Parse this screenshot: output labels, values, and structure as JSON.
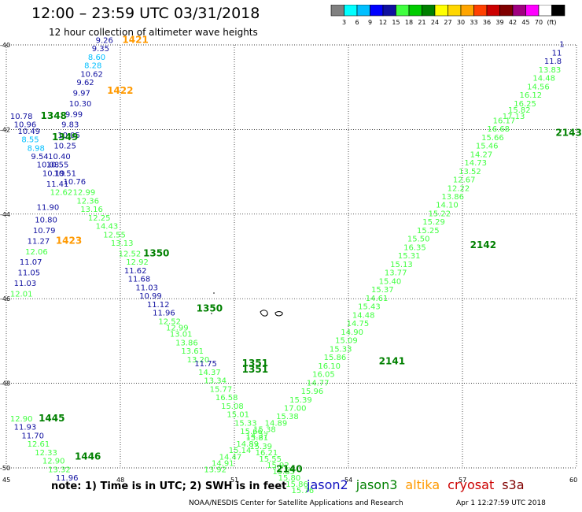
{
  "title": "12:00 – 23:59 UTC 03/31/2018",
  "subtitle": "12 hour collection of altimeter wave heights",
  "legend": {
    "colors": [
      "#808080",
      "#00ffff",
      "#00bfff",
      "#0000ff",
      "#1010a0",
      "#40ff40",
      "#00cc00",
      "#008000",
      "#ffff00",
      "#ffd700",
      "#ffa500",
      "#ff4000",
      "#cc0000",
      "#800000",
      "#a00080",
      "#ff00ff",
      "#ffffff",
      "#000000"
    ],
    "labels": [
      "3",
      "6",
      "9",
      "12",
      "15",
      "18",
      "21",
      "24",
      "27",
      "30",
      "33",
      "36",
      "39",
      "42",
      "45",
      "70",
      "(ft)"
    ]
  },
  "axes": {
    "lat_labels": [
      "-40",
      "-42",
      "-44",
      "-46",
      "-48",
      "-50"
    ],
    "lon_labels": [
      "45",
      "48",
      "51",
      "54",
      "57",
      "60"
    ]
  },
  "note": "note:  1) Time is in UTC;  2) SWH is in feet",
  "satellites": [
    {
      "name": "jason2",
      "color": "#1010c0"
    },
    {
      "name": "jason3",
      "color": "#008000"
    },
    {
      "name": "altika",
      "color": "#ff9900"
    },
    {
      "name": "cryosat",
      "color": "#cc0000"
    },
    {
      "name": "s3a",
      "color": "#800000"
    }
  ],
  "credit": "NOAA/NESDIS Center for Satellite Applications and Research",
  "timestamp": "Apr  1 12:27:59 UTC 2018",
  "pass_labels": [
    {
      "text": "1421",
      "lon": 48.05,
      "lat": -39.95,
      "color": "#ff9900"
    },
    {
      "text": "1422",
      "lon": 47.65,
      "lat": -41.15,
      "color": "#ff9900"
    },
    {
      "text": "1348",
      "lon": 45.9,
      "lat": -41.75,
      "color": "#008000"
    },
    {
      "text": "1349",
      "lon": 46.2,
      "lat": -42.25,
      "color": "#008000"
    },
    {
      "text": "1423",
      "lon": 46.3,
      "lat": -44.7,
      "color": "#ff9900"
    },
    {
      "text": "1350",
      "lon": 48.6,
      "lat": -45.0,
      "color": "#008000"
    },
    {
      "text": "1350",
      "lon": 50.0,
      "lat": -46.3,
      "color": "#008000"
    },
    {
      "text": "1351",
      "lon": 51.2,
      "lat": -47.6,
      "color": "#008000"
    },
    {
      "text": "1351",
      "lon": 51.2,
      "lat": -47.75,
      "color": "#008000"
    },
    {
      "text": "2141",
      "lon": 54.8,
      "lat": -47.55,
      "color": "#008000"
    },
    {
      "text": "2142",
      "lon": 57.2,
      "lat": -44.8,
      "color": "#008000"
    },
    {
      "text": "2143",
      "lon": 59.45,
      "lat": -42.15,
      "color": "#008000"
    },
    {
      "text": "2140",
      "lon": 52.1,
      "lat": -50.1,
      "color": "#008000"
    },
    {
      "text": "1445",
      "lon": 45.85,
      "lat": -48.9,
      "color": "#008000"
    },
    {
      "text": "1446",
      "lon": 46.8,
      "lat": -49.8,
      "color": "#008000"
    }
  ],
  "tracks": [
    {
      "name": "altika-1421",
      "points": [
        {
          "v": "9.26",
          "lon": 47.35,
          "lat": -39.95,
          "c": "#1010a0"
        },
        {
          "v": "9.35",
          "lon": 47.25,
          "lat": -40.15,
          "c": "#1010a0"
        },
        {
          "v": "8.60",
          "lon": 47.15,
          "lat": -40.35,
          "c": "#00bfff"
        },
        {
          "v": "8.28",
          "lon": 47.05,
          "lat": -40.55,
          "c": "#00bfff"
        },
        {
          "v": "10.62",
          "lon": 46.95,
          "lat": -40.75,
          "c": "#1010a0"
        },
        {
          "v": "9.62",
          "lon": 46.85,
          "lat": -40.95,
          "c": "#1010a0"
        },
        {
          "v": "9.97",
          "lon": 46.75,
          "lat": -41.2,
          "c": "#1010a0"
        },
        {
          "v": "10.30",
          "lon": 46.65,
          "lat": -41.45,
          "c": "#1010a0"
        },
        {
          "v": "9.99",
          "lon": 46.55,
          "lat": -41.7,
          "c": "#1010a0"
        },
        {
          "v": "9.83",
          "lon": 46.45,
          "lat": -41.95,
          "c": "#1010a0"
        },
        {
          "v": "10.05",
          "lon": 46.35,
          "lat": -42.2,
          "c": "#1010a0"
        },
        {
          "v": "10.25",
          "lon": 46.25,
          "lat": -42.45,
          "c": "#1010a0"
        },
        {
          "v": "10.40",
          "lon": 46.1,
          "lat": -42.7,
          "c": "#1010a0"
        },
        {
          "v": "10.55",
          "lon": 46.05,
          "lat": -42.9,
          "c": "#1010a0"
        },
        {
          "v": "10.51",
          "lon": 46.25,
          "lat": -43.1,
          "c": "#1010a0"
        },
        {
          "v": "10.76",
          "lon": 46.5,
          "lat": -43.3,
          "c": "#1010a0"
        }
      ]
    },
    {
      "name": "jason3-1348",
      "points": [
        {
          "v": "10.78",
          "lon": 45.1,
          "lat": -41.75,
          "c": "#1010a0"
        },
        {
          "v": "10.96",
          "lon": 45.2,
          "lat": -41.95,
          "c": "#1010a0"
        },
        {
          "v": "10.49",
          "lon": 45.3,
          "lat": -42.1,
          "c": "#1010a0"
        },
        {
          "v": "8.55",
          "lon": 45.4,
          "lat": -42.3,
          "c": "#00bfff"
        },
        {
          "v": "8.98",
          "lon": 45.55,
          "lat": -42.5,
          "c": "#00bfff"
        },
        {
          "v": "9.54",
          "lon": 45.65,
          "lat": -42.7,
          "c": "#1010a0"
        },
        {
          "v": "10.08",
          "lon": 45.8,
          "lat": -42.9,
          "c": "#1010a0"
        },
        {
          "v": "10.19",
          "lon": 45.95,
          "lat": -43.1,
          "c": "#1010a0"
        },
        {
          "v": "11.41",
          "lon": 46.05,
          "lat": -43.35,
          "c": "#1010a0"
        },
        {
          "v": "12.62",
          "lon": 46.15,
          "lat": -43.55,
          "c": "#40ff40"
        },
        {
          "v": "12.99",
          "lon": 46.75,
          "lat": -43.55,
          "c": "#40ff40"
        },
        {
          "v": "12.36",
          "lon": 46.85,
          "lat": -43.75,
          "c": "#40ff40"
        },
        {
          "v": "13.16",
          "lon": 46.95,
          "lat": -43.95,
          "c": "#40ff40"
        },
        {
          "v": "12.25",
          "lon": 47.15,
          "lat": -44.15,
          "c": "#40ff40"
        },
        {
          "v": "14.43",
          "lon": 47.35,
          "lat": -44.35,
          "c": "#40ff40"
        },
        {
          "v": "12.55",
          "lon": 47.55,
          "lat": -44.55,
          "c": "#40ff40"
        },
        {
          "v": "13.13",
          "lon": 47.75,
          "lat": -44.75,
          "c": "#40ff40"
        },
        {
          "v": "12.52",
          "lon": 47.95,
          "lat": -45.0,
          "c": "#40ff40"
        },
        {
          "v": "12.92",
          "lon": 48.15,
          "lat": -45.2,
          "c": "#40ff40"
        }
      ]
    },
    {
      "name": "altika-1423",
      "points": [
        {
          "v": "11.90",
          "lon": 45.8,
          "lat": -43.9,
          "c": "#1010a0"
        },
        {
          "v": "10.80",
          "lon": 45.75,
          "lat": -44.2,
          "c": "#1010a0"
        },
        {
          "v": "10.79",
          "lon": 45.7,
          "lat": -44.45,
          "c": "#1010a0"
        },
        {
          "v": "11.27",
          "lon": 45.55,
          "lat": -44.7,
          "c": "#1010a0"
        },
        {
          "v": "12.06",
          "lon": 45.5,
          "lat": -44.95,
          "c": "#40ff40"
        },
        {
          "v": "11.07",
          "lon": 45.35,
          "lat": -45.2,
          "c": "#1010a0"
        },
        {
          "v": "11.05",
          "lon": 45.3,
          "lat": -45.45,
          "c": "#1010a0"
        },
        {
          "v": "11.03",
          "lon": 45.2,
          "lat": -45.7,
          "c": "#1010a0"
        },
        {
          "v": "12.01",
          "lon": 45.1,
          "lat": -45.95,
          "c": "#40ff40"
        }
      ]
    },
    {
      "name": "jason2-1350",
      "points": [
        {
          "v": "11.62",
          "lon": 48.1,
          "lat": -45.4,
          "c": "#1010a0"
        },
        {
          "v": "11.68",
          "lon": 48.2,
          "lat": -45.6,
          "c": "#1010a0"
        },
        {
          "v": "11.03",
          "lon": 48.4,
          "lat": -45.8,
          "c": "#1010a0"
        },
        {
          "v": "10.99",
          "lon": 48.5,
          "lat": -46.0,
          "c": "#1010a0"
        },
        {
          "v": "11.12",
          "lon": 48.7,
          "lat": -46.2,
          "c": "#1010a0"
        },
        {
          "v": "11.96",
          "lon": 48.85,
          "lat": -46.4,
          "c": "#1010a0"
        },
        {
          "v": "12.52",
          "lon": 49.0,
          "lat": -46.6,
          "c": "#40ff40"
        },
        {
          "v": "12.99",
          "lon": 49.2,
          "lat": -46.75,
          "c": "#40ff40"
        },
        {
          "v": "13.01",
          "lon": 49.3,
          "lat": -46.9,
          "c": "#40ff40"
        },
        {
          "v": "13.86",
          "lon": 49.45,
          "lat": -47.1,
          "c": "#40ff40"
        },
        {
          "v": "13.61",
          "lon": 49.6,
          "lat": -47.3,
          "c": "#40ff40"
        },
        {
          "v": "13.20",
          "lon": 49.75,
          "lat": -47.5,
          "c": "#40ff40"
        },
        {
          "v": "11.75",
          "lon": 49.95,
          "lat": -47.6,
          "c": "#1010a0"
        },
        {
          "v": "14.37",
          "lon": 50.05,
          "lat": -47.8,
          "c": "#40ff40"
        },
        {
          "v": "13.34",
          "lon": 50.2,
          "lat": -48.0,
          "c": "#40ff40"
        },
        {
          "v": "15.77",
          "lon": 50.35,
          "lat": -48.2,
          "c": "#40ff40"
        },
        {
          "v": "16.58",
          "lon": 50.5,
          "lat": -48.4,
          "c": "#40ff40"
        },
        {
          "v": "15.08",
          "lon": 50.65,
          "lat": -48.6,
          "c": "#40ff40"
        },
        {
          "v": "15.01",
          "lon": 50.8,
          "lat": -48.8,
          "c": "#40ff40"
        },
        {
          "v": "15.33",
          "lon": 51.0,
          "lat": -49.0,
          "c": "#40ff40"
        },
        {
          "v": "15.66",
          "lon": 51.15,
          "lat": -49.2,
          "c": "#40ff40"
        },
        {
          "v": "15.81",
          "lon": 51.3,
          "lat": -49.35,
          "c": "#40ff40"
        },
        {
          "v": "15.39",
          "lon": 51.4,
          "lat": -49.55,
          "c": "#40ff40"
        },
        {
          "v": "16.21",
          "lon": 51.55,
          "lat": -49.7,
          "c": "#40ff40"
        },
        {
          "v": "15.55",
          "lon": 51.65,
          "lat": -49.85,
          "c": "#40ff40"
        },
        {
          "v": "15.92",
          "lon": 51.85,
          "lat": -50.0,
          "c": "#40ff40"
        },
        {
          "v": "15.85",
          "lon": 52.0,
          "lat": -50.15,
          "c": "#40ff40"
        },
        {
          "v": "15.80",
          "lon": 52.15,
          "lat": -50.3,
          "c": "#40ff40"
        },
        {
          "v": "15.86",
          "lon": 52.35,
          "lat": -50.45,
          "c": "#40ff40"
        },
        {
          "v": "15.76",
          "lon": 52.5,
          "lat": -50.6,
          "c": "#40ff40"
        }
      ]
    },
    {
      "name": "jason3-2140",
      "points": [
        {
          "v": "13.92",
          "lon": 50.2,
          "lat": -50.1,
          "c": "#40ff40"
        },
        {
          "v": "14.91",
          "lon": 50.4,
          "lat": -49.95,
          "c": "#40ff40"
        },
        {
          "v": "14.47",
          "lon": 50.6,
          "lat": -49.8,
          "c": "#40ff40"
        },
        {
          "v": "15.14",
          "lon": 50.85,
          "lat": -49.65,
          "c": "#40ff40"
        },
        {
          "v": "14.89",
          "lon": 51.05,
          "lat": -49.5,
          "c": "#40ff40"
        },
        {
          "v": "14.37",
          "lon": 51.3,
          "lat": -49.3,
          "c": "#40ff40"
        },
        {
          "v": "15.38",
          "lon": 51.5,
          "lat": -49.15,
          "c": "#40ff40"
        },
        {
          "v": "14.89",
          "lon": 51.8,
          "lat": -49.0,
          "c": "#40ff40"
        },
        {
          "v": "15.38",
          "lon": 52.1,
          "lat": -48.85,
          "c": "#40ff40"
        },
        {
          "v": "17.00",
          "lon": 52.3,
          "lat": -48.65,
          "c": "#40ff40"
        },
        {
          "v": "15.39",
          "lon": 52.45,
          "lat": -48.45,
          "c": "#40ff40"
        },
        {
          "v": "15.96",
          "lon": 52.75,
          "lat": -48.25,
          "c": "#40ff40"
        },
        {
          "v": "14.77",
          "lon": 52.9,
          "lat": -48.05,
          "c": "#40ff40"
        },
        {
          "v": "16.05",
          "lon": 53.05,
          "lat": -47.85,
          "c": "#40ff40"
        },
        {
          "v": "16.10",
          "lon": 53.2,
          "lat": -47.65,
          "c": "#40ff40"
        },
        {
          "v": "15.86",
          "lon": 53.35,
          "lat": -47.45,
          "c": "#40ff40"
        },
        {
          "v": "15.33",
          "lon": 53.5,
          "lat": -47.25,
          "c": "#40ff40"
        },
        {
          "v": "15.09",
          "lon": 53.65,
          "lat": -47.05,
          "c": "#40ff40"
        },
        {
          "v": "14.90",
          "lon": 53.8,
          "lat": -46.85,
          "c": "#40ff40"
        },
        {
          "v": "14.75",
          "lon": 53.95,
          "lat": -46.65,
          "c": "#40ff40"
        },
        {
          "v": "14.48",
          "lon": 54.1,
          "lat": -46.45,
          "c": "#40ff40"
        },
        {
          "v": "15.43",
          "lon": 54.25,
          "lat": -46.25,
          "c": "#40ff40"
        },
        {
          "v": "14.61",
          "lon": 54.45,
          "lat": -46.05,
          "c": "#40ff40"
        },
        {
          "v": "15.37",
          "lon": 54.6,
          "lat": -45.85,
          "c": "#40ff40"
        },
        {
          "v": "15.40",
          "lon": 54.8,
          "lat": -45.65,
          "c": "#40ff40"
        },
        {
          "v": "13.77",
          "lon": 54.95,
          "lat": -45.45,
          "c": "#40ff40"
        },
        {
          "v": "15.13",
          "lon": 55.1,
          "lat": -45.25,
          "c": "#40ff40"
        },
        {
          "v": "15.31",
          "lon": 55.3,
          "lat": -45.05,
          "c": "#40ff40"
        },
        {
          "v": "16.35",
          "lon": 55.45,
          "lat": -44.85,
          "c": "#40ff40"
        },
        {
          "v": "15.50",
          "lon": 55.55,
          "lat": -44.65,
          "c": "#40ff40"
        },
        {
          "v": "15.25",
          "lon": 55.8,
          "lat": -44.45,
          "c": "#40ff40"
        },
        {
          "v": "15.29",
          "lon": 55.95,
          "lat": -44.25,
          "c": "#40ff40"
        },
        {
          "v": "15.22",
          "lon": 56.1,
          "lat": -44.05,
          "c": "#40ff40"
        },
        {
          "v": "14.10",
          "lon": 56.3,
          "lat": -43.85,
          "c": "#40ff40"
        },
        {
          "v": "13.86",
          "lon": 56.45,
          "lat": -43.65,
          "c": "#40ff40"
        },
        {
          "v": "12.22",
          "lon": 56.6,
          "lat": -43.45,
          "c": "#40ff40"
        },
        {
          "v": "12.67",
          "lon": 56.75,
          "lat": -43.25,
          "c": "#40ff40"
        },
        {
          "v": "13.52",
          "lon": 56.9,
          "lat": -43.05,
          "c": "#40ff40"
        },
        {
          "v": "14.73",
          "lon": 57.05,
          "lat": -42.85,
          "c": "#40ff40"
        },
        {
          "v": "14.27",
          "lon": 57.2,
          "lat": -42.65,
          "c": "#40ff40"
        },
        {
          "v": "15.46",
          "lon": 57.35,
          "lat": -42.45,
          "c": "#40ff40"
        },
        {
          "v": "15.66",
          "lon": 57.5,
          "lat": -42.25,
          "c": "#40ff40"
        },
        {
          "v": "16.68",
          "lon": 57.65,
          "lat": -42.05,
          "c": "#40ff40"
        },
        {
          "v": "16.17",
          "lon": 57.8,
          "lat": -41.85,
          "c": "#40ff40"
        },
        {
          "v": "17.13",
          "lon": 58.05,
          "lat": -41.75,
          "c": "#40ff40"
        },
        {
          "v": "15.82",
          "lon": 58.2,
          "lat": -41.6,
          "c": "#40ff40"
        },
        {
          "v": "16.25",
          "lon": 58.35,
          "lat": -41.45,
          "c": "#40ff40"
        },
        {
          "v": "16.12",
          "lon": 58.5,
          "lat": -41.25,
          "c": "#40ff40"
        },
        {
          "v": "14.56",
          "lon": 58.7,
          "lat": -41.05,
          "c": "#40ff40"
        },
        {
          "v": "14.48",
          "lon": 58.85,
          "lat": -40.85,
          "c": "#40ff40"
        },
        {
          "v": "13.83",
          "lon": 59.0,
          "lat": -40.65,
          "c": "#40ff40"
        },
        {
          "v": "11.8",
          "lon": 59.15,
          "lat": -40.45,
          "c": "#1010a0"
        },
        {
          "v": "11",
          "lon": 59.35,
          "lat": -40.25,
          "c": "#1010a0"
        },
        {
          "v": "1",
          "lon": 59.55,
          "lat": -40.05,
          "c": "#1010a0"
        }
      ]
    },
    {
      "name": "jason3-1445",
      "points": [
        {
          "v": "12.90",
          "lon": 45.1,
          "lat": -48.9,
          "c": "#40ff40"
        },
        {
          "v": "11.93",
          "lon": 45.2,
          "lat": -49.1,
          "c": "#1010a0"
        },
        {
          "v": "11.70",
          "lon": 45.4,
          "lat": -49.3,
          "c": "#1010a0"
        },
        {
          "v": "12.61",
          "lon": 45.55,
          "lat": -49.5,
          "c": "#40ff40"
        },
        {
          "v": "12.33",
          "lon": 45.75,
          "lat": -49.7,
          "c": "#40ff40"
        },
        {
          "v": "12.90",
          "lon": 45.95,
          "lat": -49.9,
          "c": "#40ff40"
        },
        {
          "v": "13.32",
          "lon": 46.1,
          "lat": -50.1,
          "c": "#40ff40"
        },
        {
          "v": "11.96",
          "lon": 46.3,
          "lat": -50.3,
          "c": "#1010a0"
        }
      ]
    }
  ]
}
